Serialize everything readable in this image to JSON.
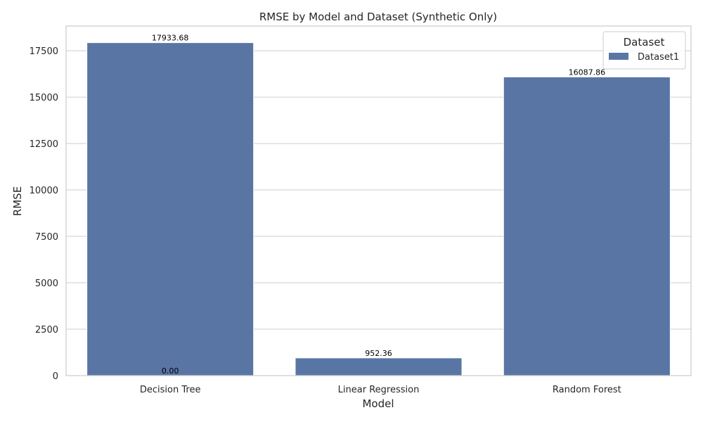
{
  "chart_data": {
    "type": "bar",
    "title": "RMSE by Model and Dataset (Synthetic Only)",
    "xlabel": "Model",
    "ylabel": "RMSE",
    "categories": [
      "Decision Tree",
      "Linear Regression",
      "Random Forest"
    ],
    "series": [
      {
        "name": "Dataset1",
        "values": [
          17933.68,
          952.36,
          16087.86
        ],
        "labels": [
          "17933.68",
          "952.36",
          "16087.86"
        ]
      }
    ],
    "extra_annotations": [
      {
        "category": "Decision Tree",
        "value": 0,
        "label": "0.00"
      }
    ],
    "yticks": [
      0,
      2500,
      5000,
      7500,
      10000,
      12500,
      15000,
      17500
    ],
    "ylim": [
      0,
      18830
    ],
    "grid": true,
    "legend": {
      "title": "Dataset",
      "placement": "top-right"
    },
    "colors": {
      "bar": "#5975a4",
      "grid": "#cccccc",
      "text": "#262626"
    }
  }
}
